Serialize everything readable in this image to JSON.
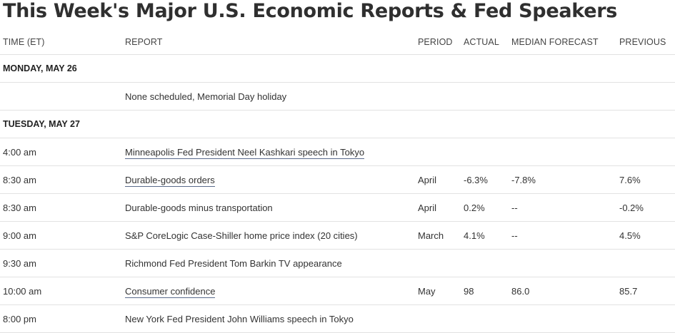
{
  "page": {
    "title": "This Week's Major U.S. Economic Reports & Fed Speakers"
  },
  "table": {
    "headers": {
      "time": "TIME (ET)",
      "report": "REPORT",
      "period": "PERIOD",
      "actual": "ACTUAL",
      "forecast": "MEDIAN FORECAST",
      "previous": "PREVIOUS"
    },
    "monday": {
      "label": "MONDAY, MAY 26",
      "note": "None scheduled, Memorial Day holiday"
    },
    "tuesday": {
      "label": "TUESDAY, MAY 27",
      "rows": [
        {
          "time": "4:00 am",
          "report": "Minneapolis Fed President Neel Kashkari speech in Tokyo",
          "period": "",
          "actual": "",
          "forecast": "",
          "previous": ""
        },
        {
          "time": "8:30 am",
          "report": "Durable-goods orders",
          "period": "April",
          "actual": "-6.3%",
          "forecast": "-7.8%",
          "previous": "7.6%"
        },
        {
          "time": "8:30 am",
          "report": "Durable-goods minus transportation",
          "period": "April",
          "actual": "0.2%",
          "forecast": "--",
          "previous": "-0.2%"
        },
        {
          "time": "9:00 am",
          "report": "S&P CoreLogic Case-Shiller home price index (20 cities)",
          "period": "March",
          "actual": "4.1%",
          "forecast": "--",
          "previous": "4.5%"
        },
        {
          "time": "9:30 am",
          "report": "Richmond Fed President Tom Barkin TV appearance",
          "period": "",
          "actual": "",
          "forecast": "",
          "previous": ""
        },
        {
          "time": "10:00 am",
          "report": "Consumer confidence",
          "period": "May",
          "actual": "98",
          "forecast": "86.0",
          "previous": "85.7"
        },
        {
          "time": "8:00 pm",
          "report": "New York Fed President John Williams speech in Tokyo",
          "period": "",
          "actual": "",
          "forecast": "",
          "previous": ""
        }
      ]
    }
  }
}
